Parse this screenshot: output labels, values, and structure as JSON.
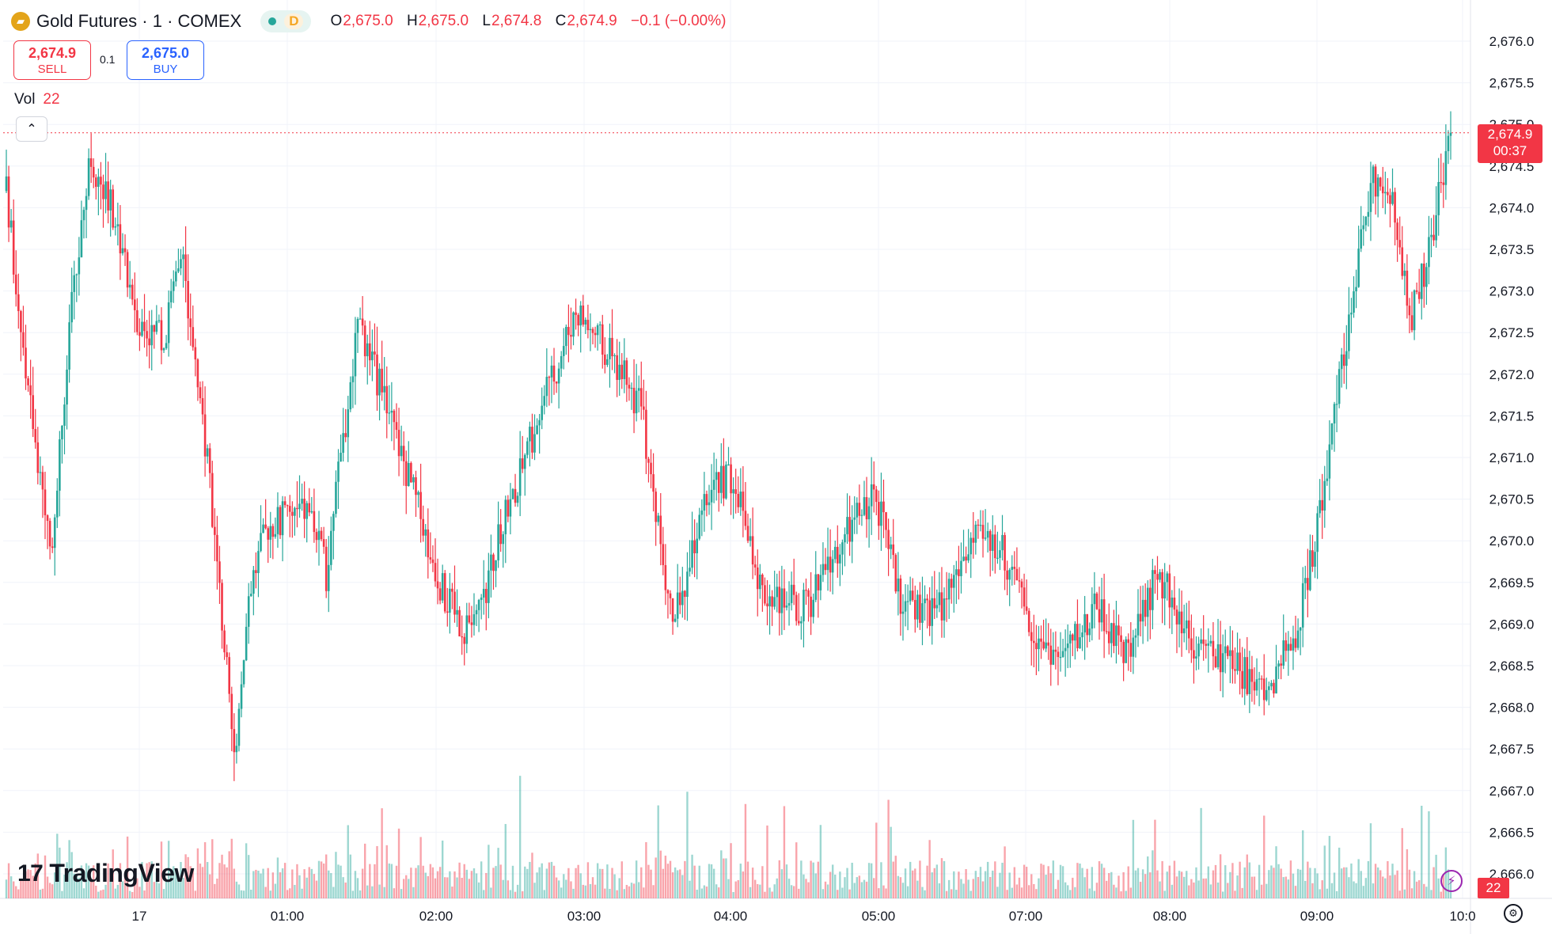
{
  "header": {
    "logo_icon": "gold-bars-icon",
    "title": "Gold Futures · 1 · COMEX",
    "status_pill_letter": "D",
    "ohlc": {
      "o_label": "O",
      "o_value": "2,675.0",
      "h_label": "H",
      "h_value": "2,675.0",
      "l_label": "L",
      "l_value": "2,674.8",
      "c_label": "C",
      "c_value": "2,674.9",
      "change": "−0.1 (−0.00%)"
    }
  },
  "trade": {
    "sell_price": "2,674.9",
    "sell_label": "SELL",
    "spread": "0.1",
    "buy_price": "2,675.0",
    "buy_label": "BUY"
  },
  "volume_legend": {
    "label": "Vol",
    "value": "22"
  },
  "price_tag": {
    "price": "2,674.9",
    "countdown": "00:37"
  },
  "volume_tag": "22",
  "branding": {
    "name": "TradingView",
    "mark": "17"
  },
  "colors": {
    "up": "#26a69a",
    "down": "#f23645",
    "grid": "#f0f3fa",
    "last_price_line": "#f23645"
  },
  "chart_data": {
    "type": "candlestick",
    "interval": "1 minute",
    "y_axis": {
      "range": [
        2665.8,
        2676.3
      ],
      "ticks": [
        "2,676.0",
        "2,675.5",
        "2,675.0",
        "2,674.5",
        "2,674.0",
        "2,673.5",
        "2,673.0",
        "2,672.5",
        "2,672.0",
        "2,671.5",
        "2,671.0",
        "2,670.5",
        "2,670.0",
        "2,669.5",
        "2,669.0",
        "2,668.5",
        "2,668.0",
        "2,667.5",
        "2,667.0",
        "2,666.5",
        "2,666.0"
      ]
    },
    "x_axis": {
      "ticks": [
        "17",
        "01:00",
        "02:00",
        "03:00",
        "04:00",
        "05:00",
        "07:00",
        "08:00",
        "09:00",
        "10:0"
      ]
    },
    "last_price": 2674.9,
    "price_path": [
      {
        "t": 0,
        "p": 2674.2
      },
      {
        "t": 8,
        "p": 2672.0
      },
      {
        "t": 18,
        "p": 2669.8
      },
      {
        "t": 27,
        "p": 2672.8
      },
      {
        "t": 35,
        "p": 2674.6
      },
      {
        "t": 45,
        "p": 2673.9
      },
      {
        "t": 55,
        "p": 2672.6
      },
      {
        "t": 65,
        "p": 2672.4
      },
      {
        "t": 72,
        "p": 2673.6
      },
      {
        "t": 82,
        "p": 2671.2
      },
      {
        "t": 88,
        "p": 2669.4
      },
      {
        "t": 94,
        "p": 2667.4
      },
      {
        "t": 100,
        "p": 2669.4
      },
      {
        "t": 108,
        "p": 2670.2
      },
      {
        "t": 125,
        "p": 2670.4
      },
      {
        "t": 132,
        "p": 2669.6
      },
      {
        "t": 145,
        "p": 2672.6
      },
      {
        "t": 155,
        "p": 2671.8
      },
      {
        "t": 170,
        "p": 2670.4
      },
      {
        "t": 180,
        "p": 2669.4
      },
      {
        "t": 192,
        "p": 2668.8
      },
      {
        "t": 205,
        "p": 2670.2
      },
      {
        "t": 220,
        "p": 2671.5
      },
      {
        "t": 235,
        "p": 2672.8
      },
      {
        "t": 250,
        "p": 2672.2
      },
      {
        "t": 262,
        "p": 2671.6
      },
      {
        "t": 275,
        "p": 2669.0
      },
      {
        "t": 290,
        "p": 2670.6
      },
      {
        "t": 300,
        "p": 2670.8
      },
      {
        "t": 312,
        "p": 2669.4
      },
      {
        "t": 330,
        "p": 2669.2
      },
      {
        "t": 345,
        "p": 2670.0
      },
      {
        "t": 358,
        "p": 2670.6
      },
      {
        "t": 370,
        "p": 2669.2
      },
      {
        "t": 385,
        "p": 2669.2
      },
      {
        "t": 398,
        "p": 2670.0
      },
      {
        "t": 410,
        "p": 2670.0
      },
      {
        "t": 422,
        "p": 2669.0
      },
      {
        "t": 435,
        "p": 2668.6
      },
      {
        "t": 450,
        "p": 2669.2
      },
      {
        "t": 462,
        "p": 2668.6
      },
      {
        "t": 475,
        "p": 2669.6
      },
      {
        "t": 490,
        "p": 2668.8
      },
      {
        "t": 505,
        "p": 2668.5
      },
      {
        "t": 520,
        "p": 2668.2
      },
      {
        "t": 532,
        "p": 2668.9
      },
      {
        "t": 540,
        "p": 2670.0
      },
      {
        "t": 548,
        "p": 2671.5
      },
      {
        "t": 556,
        "p": 2673.0
      },
      {
        "t": 564,
        "p": 2674.4
      },
      {
        "t": 572,
        "p": 2674.0
      },
      {
        "t": 580,
        "p": 2672.7
      },
      {
        "t": 588,
        "p": 2673.6
      },
      {
        "t": 596,
        "p": 2674.9
      }
    ]
  }
}
